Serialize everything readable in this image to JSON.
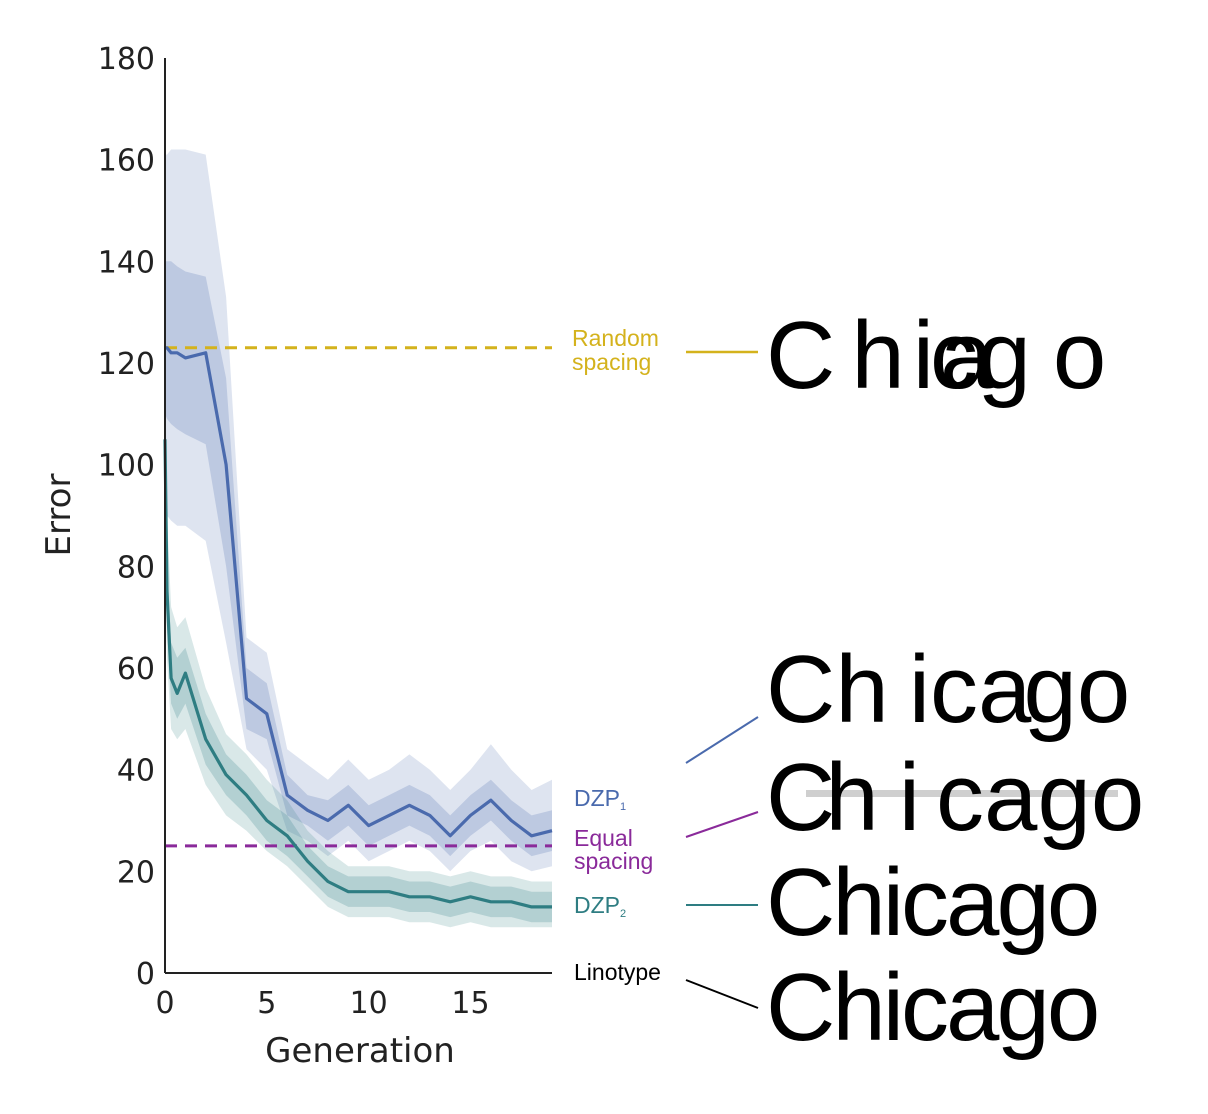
{
  "chart_data": {
    "type": "line",
    "xlabel": "Generation",
    "ylabel": "Error",
    "xlim": [
      0,
      19
    ],
    "ylim": [
      0,
      180
    ],
    "xticks": [
      0,
      5,
      10,
      15
    ],
    "yticks": [
      0,
      20,
      40,
      60,
      80,
      100,
      120,
      140,
      160,
      180
    ],
    "grid": false,
    "x": [
      0,
      0.1,
      0.3,
      0.6,
      1,
      2,
      3,
      4,
      5,
      6,
      7,
      8,
      9,
      10,
      11,
      12,
      13,
      14,
      15,
      16,
      17,
      18,
      19
    ],
    "series": [
      {
        "name": "DZP",
        "subscript": "1",
        "color": "#4a6aad",
        "values": [
          123,
          123,
          122,
          122,
          121,
          122,
          100,
          54,
          51,
          35,
          32,
          30,
          33,
          29,
          31,
          33,
          31,
          27,
          31,
          34,
          30,
          27,
          28
        ],
        "inner_low": [
          110,
          109,
          108,
          107,
          106,
          104,
          80,
          48,
          46,
          31,
          29,
          26,
          29,
          25,
          27,
          29,
          27,
          23,
          27,
          30,
          26,
          23,
          24
        ],
        "inner_high": [
          140,
          140,
          140,
          139,
          138,
          137,
          117,
          60,
          57,
          39,
          35,
          34,
          37,
          33,
          35,
          37,
          35,
          31,
          35,
          38,
          34,
          31,
          32
        ],
        "outer_low": [
          90,
          90,
          89,
          88,
          88,
          85,
          65,
          44,
          40,
          28,
          26,
          23,
          26,
          22,
          24,
          26,
          24,
          20,
          24,
          26,
          22,
          20,
          21
        ],
        "outer_high": [
          161,
          161,
          162,
          162,
          162,
          161,
          133,
          66,
          63,
          44,
          41,
          38,
          42,
          38,
          40,
          43,
          40,
          36,
          40,
          45,
          40,
          36,
          38
        ]
      },
      {
        "name": "DZP",
        "subscript": "2",
        "color": "#2e7d82",
        "values": [
          105,
          75,
          58,
          55,
          59,
          46,
          39,
          35,
          30,
          27,
          22,
          18,
          16,
          16,
          16,
          15,
          15,
          14,
          15,
          14,
          14,
          13,
          13
        ],
        "inner_low": [
          95,
          68,
          53,
          50,
          53,
          41,
          35,
          31,
          26,
          23,
          19,
          15,
          13,
          13,
          13,
          12,
          12,
          11,
          12,
          11,
          11,
          10,
          10
        ],
        "inner_high": [
          115,
          82,
          65,
          62,
          64,
          51,
          43,
          39,
          34,
          31,
          25,
          21,
          19,
          19,
          19,
          18,
          18,
          17,
          18,
          17,
          17,
          16,
          16
        ],
        "outer_low": [
          85,
          62,
          48,
          46,
          48,
          37,
          31,
          28,
          24,
          21,
          17,
          13,
          11,
          11,
          11,
          10,
          10,
          9,
          10,
          9,
          9,
          9,
          9
        ],
        "outer_high": [
          125,
          90,
          72,
          68,
          70,
          56,
          47,
          43,
          38,
          34,
          28,
          24,
          21,
          21,
          21,
          20,
          20,
          19,
          20,
          19,
          19,
          18,
          18
        ]
      }
    ],
    "baselines": [
      {
        "label_line1": "Random",
        "label_line2": "spacing",
        "value": 123,
        "color": "#d4b21c",
        "style": "dashed"
      },
      {
        "label_line1": "Equal",
        "label_line2": "spacing",
        "value": 25,
        "color": "#8a2a9a",
        "style": "dashed"
      }
    ],
    "reference_label": "Linotype",
    "sample_word": "Chicago"
  }
}
